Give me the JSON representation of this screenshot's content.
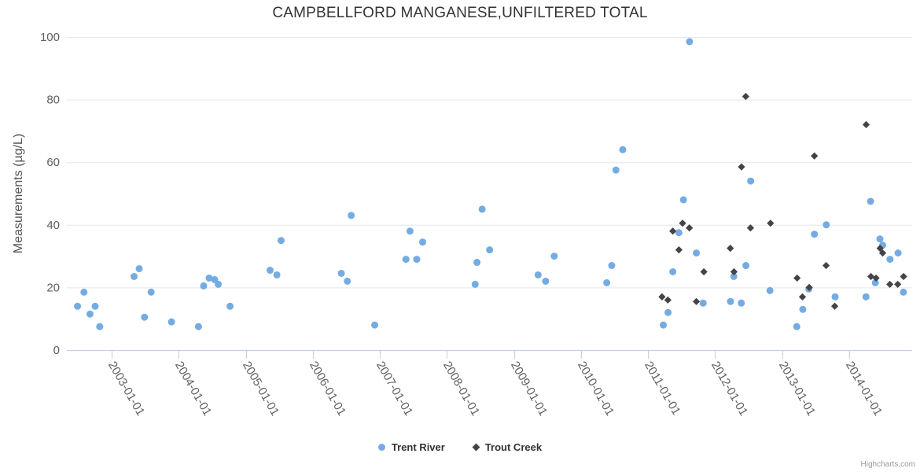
{
  "credits_label": "Highcharts.com",
  "chart_data": {
    "type": "scatter",
    "title": "CAMPBELLFORD MANGANESE,UNFILTERED TOTAL",
    "xlabel": "",
    "ylabel": "Measurements (µg/L)",
    "ylim": [
      0,
      100
    ],
    "yticks": [
      0,
      20,
      40,
      60,
      80,
      100
    ],
    "xticks": [
      "2003-01-01",
      "2004-01-01",
      "2005-01-01",
      "2006-01-01",
      "2007-01-01",
      "2008-01-01",
      "2009-01-01",
      "2010-01-01",
      "2011-01-01",
      "2012-01-01",
      "2013-01-01",
      "2014-01-01"
    ],
    "grid": "horizontal",
    "legend_position": "bottom-center",
    "axis_line_color": "#C0D0E0",
    "gridline_color": "#E6E6E6",
    "label_color": "#606060",
    "series": [
      {
        "name": "Trent River",
        "marker": "circle",
        "color": "#74ABE2",
        "data": [
          [
            "2002-06-29",
            14
          ],
          [
            "2002-08-03",
            18.5
          ],
          [
            "2002-09-05",
            11.5
          ],
          [
            "2002-10-03",
            14
          ],
          [
            "2002-10-28",
            7.5
          ],
          [
            "2003-05-03",
            23.5
          ],
          [
            "2003-05-31",
            26
          ],
          [
            "2003-06-29",
            10.5
          ],
          [
            "2003-08-04",
            18.5
          ],
          [
            "2003-11-23",
            9
          ],
          [
            "2004-04-18",
            7.5
          ],
          [
            "2004-05-16",
            20.5
          ],
          [
            "2004-06-15",
            23
          ],
          [
            "2004-07-15",
            22.5
          ],
          [
            "2004-08-04",
            21
          ],
          [
            "2004-10-07",
            14
          ],
          [
            "2005-05-13",
            25.5
          ],
          [
            "2005-06-19",
            24
          ],
          [
            "2005-07-12",
            35
          ],
          [
            "2006-06-05",
            24.5
          ],
          [
            "2006-07-08",
            22
          ],
          [
            "2006-07-29",
            43
          ],
          [
            "2006-12-04",
            8
          ],
          [
            "2007-05-23",
            29
          ],
          [
            "2007-06-14",
            38
          ],
          [
            "2007-07-21",
            29
          ],
          [
            "2007-08-22",
            34.5
          ],
          [
            "2008-06-03",
            21
          ],
          [
            "2008-06-13",
            28
          ],
          [
            "2008-07-11",
            45
          ],
          [
            "2008-08-21",
            32
          ],
          [
            "2009-05-12",
            24
          ],
          [
            "2009-06-22",
            22
          ],
          [
            "2009-08-08",
            30
          ],
          [
            "2010-05-21",
            21.5
          ],
          [
            "2010-06-17",
            27
          ],
          [
            "2010-07-10",
            57.5
          ],
          [
            "2010-08-16",
            64
          ],
          [
            "2011-03-25",
            8
          ],
          [
            "2011-04-20",
            12
          ],
          [
            "2011-05-16",
            25
          ],
          [
            "2011-06-18",
            37.5
          ],
          [
            "2011-07-13",
            48
          ],
          [
            "2011-08-15",
            98.5
          ],
          [
            "2011-09-21",
            31
          ],
          [
            "2011-10-28",
            15
          ],
          [
            "2012-03-25",
            15.5
          ],
          [
            "2012-04-12",
            23.5
          ],
          [
            "2012-05-23",
            15
          ],
          [
            "2012-06-17",
            27
          ],
          [
            "2012-07-13",
            54
          ],
          [
            "2012-10-26",
            19
          ],
          [
            "2013-03-21",
            7.5
          ],
          [
            "2013-04-23",
            13
          ],
          [
            "2013-05-26",
            19.5
          ],
          [
            "2013-06-25",
            37
          ],
          [
            "2013-08-29",
            40
          ],
          [
            "2013-10-16",
            17
          ],
          [
            "2014-04-02",
            17
          ],
          [
            "2014-04-27",
            47.5
          ],
          [
            "2014-05-23",
            21.5
          ],
          [
            "2014-06-17",
            35.5
          ],
          [
            "2014-07-02",
            33.5
          ],
          [
            "2014-08-11",
            29
          ],
          [
            "2014-09-24",
            31
          ],
          [
            "2014-10-23",
            18.5
          ]
        ]
      },
      {
        "name": "Trout Creek",
        "marker": "diamond",
        "color": "#434348",
        "data": [
          [
            "2011-03-18",
            17
          ],
          [
            "2011-04-19",
            16
          ],
          [
            "2011-05-16",
            38
          ],
          [
            "2011-06-18",
            32
          ],
          [
            "2011-07-08",
            40.5
          ],
          [
            "2011-08-14",
            39
          ],
          [
            "2011-09-21",
            15.5
          ],
          [
            "2011-11-01",
            25
          ],
          [
            "2012-03-24",
            32.5
          ],
          [
            "2012-04-13",
            25
          ],
          [
            "2012-05-24",
            58.5
          ],
          [
            "2012-06-16",
            81
          ],
          [
            "2012-07-12",
            39
          ],
          [
            "2012-10-29",
            40.5
          ],
          [
            "2013-03-23",
            23
          ],
          [
            "2013-04-21",
            17
          ],
          [
            "2013-05-28",
            20
          ],
          [
            "2013-06-25",
            62
          ],
          [
            "2013-08-28",
            27
          ],
          [
            "2013-10-14",
            14
          ],
          [
            "2014-04-03",
            72
          ],
          [
            "2014-04-29",
            23.5
          ],
          [
            "2014-05-27",
            23
          ],
          [
            "2014-06-18",
            32.5
          ],
          [
            "2014-07-02",
            31
          ],
          [
            "2014-08-10",
            21
          ],
          [
            "2014-09-22",
            21
          ],
          [
            "2014-10-24",
            23.5
          ]
        ]
      }
    ]
  }
}
